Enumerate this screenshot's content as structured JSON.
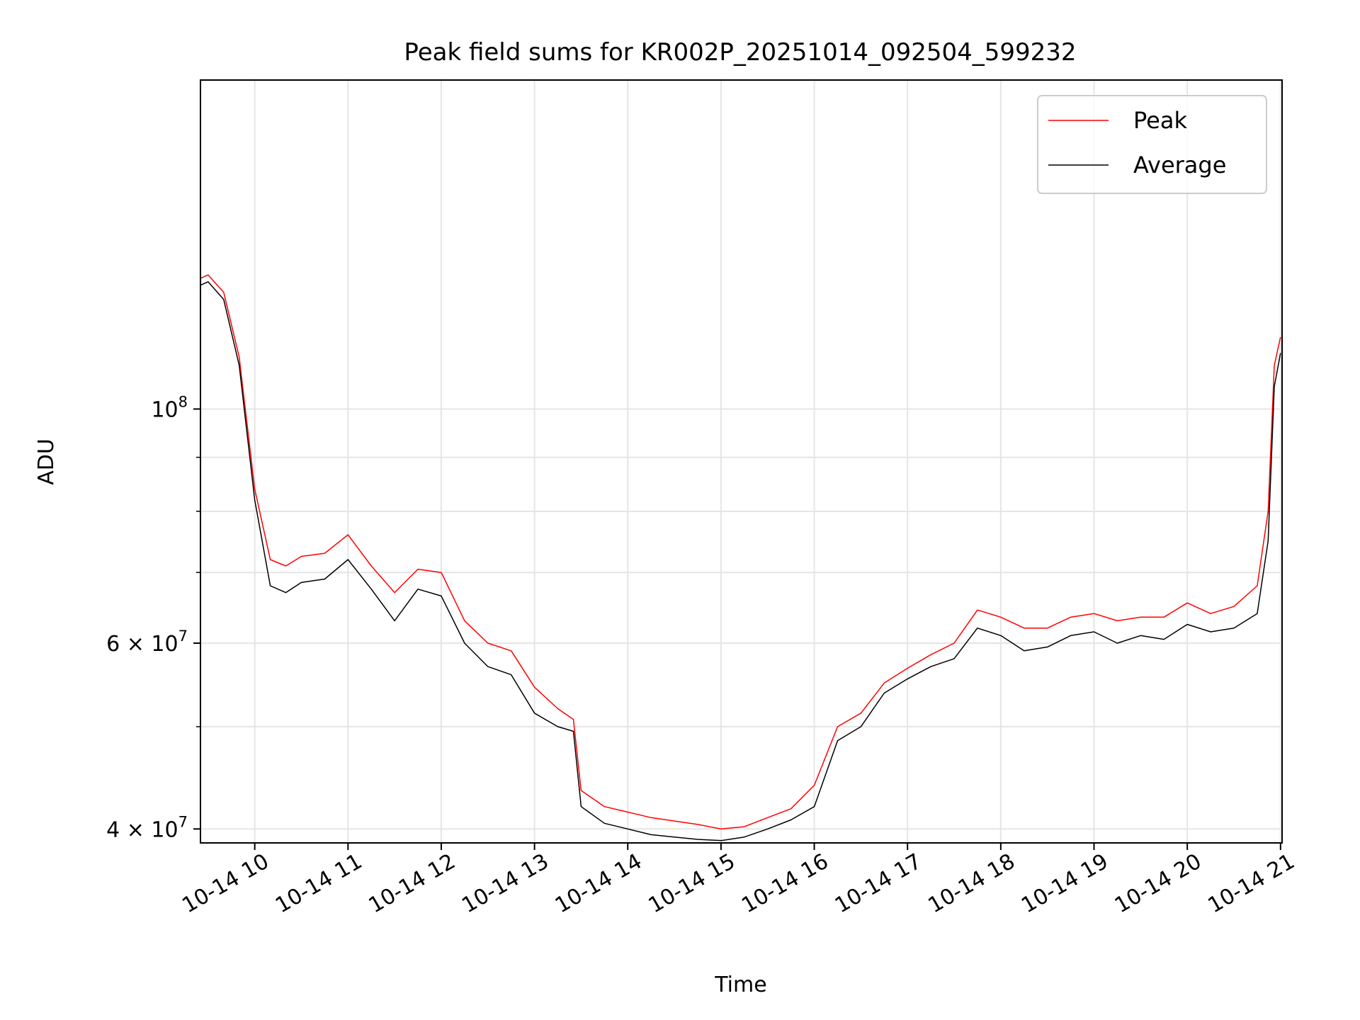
{
  "chart_data": {
    "type": "line",
    "title": "Peak field sums for KR002P_20251014_092504_599232",
    "xlabel": "Time",
    "ylabel": "ADU",
    "x_scale": "time",
    "y_scale": "log",
    "xlim": [
      "2025-10-14T09:25:04",
      "2025-10-14T21:01:00"
    ],
    "ylim": [
      38800000,
      205000000
    ],
    "x_ticks": [
      {
        "value": "2025-10-14T10:00:00",
        "label": "10-14 10"
      },
      {
        "value": "2025-10-14T11:00:00",
        "label": "10-14 11"
      },
      {
        "value": "2025-10-14T12:00:00",
        "label": "10-14 12"
      },
      {
        "value": "2025-10-14T13:00:00",
        "label": "10-14 13"
      },
      {
        "value": "2025-10-14T14:00:00",
        "label": "10-14 14"
      },
      {
        "value": "2025-10-14T15:00:00",
        "label": "10-14 15"
      },
      {
        "value": "2025-10-14T16:00:00",
        "label": "10-14 16"
      },
      {
        "value": "2025-10-14T17:00:00",
        "label": "10-14 17"
      },
      {
        "value": "2025-10-14T18:00:00",
        "label": "10-14 18"
      },
      {
        "value": "2025-10-14T19:00:00",
        "label": "10-14 19"
      },
      {
        "value": "2025-10-14T20:00:00",
        "label": "10-14 20"
      },
      {
        "value": "2025-10-14T21:00:00",
        "label": "10-14 21"
      }
    ],
    "y_major_ticks": [
      {
        "value": 100000000,
        "label_base": "10",
        "label_exp": "8"
      },
      {
        "value": 60000000,
        "label_base": "6 × 10",
        "label_exp": "7"
      },
      {
        "value": 40000000,
        "label_base": "4 × 10",
        "label_exp": "7"
      }
    ],
    "y_minor_ticks": [
      90000000,
      80000000,
      70000000,
      50000000
    ],
    "grid": true,
    "legend_position": "top-right",
    "series": [
      {
        "name": "Peak",
        "color": "#ff0000",
        "x": [
          "2025-10-14T09:25:04",
          "2025-10-14T09:30:00",
          "2025-10-14T09:40:00",
          "2025-10-14T09:50:00",
          "2025-10-14T10:00:00",
          "2025-10-14T10:10:00",
          "2025-10-14T10:20:00",
          "2025-10-14T10:30:00",
          "2025-10-14T10:45:00",
          "2025-10-14T11:00:00",
          "2025-10-14T11:15:00",
          "2025-10-14T11:30:00",
          "2025-10-14T11:45:00",
          "2025-10-14T12:00:00",
          "2025-10-14T12:15:00",
          "2025-10-14T12:30:00",
          "2025-10-14T12:45:00",
          "2025-10-14T13:00:00",
          "2025-10-14T13:15:00",
          "2025-10-14T13:25:00",
          "2025-10-14T13:30:00",
          "2025-10-14T13:45:00",
          "2025-10-14T14:00:00",
          "2025-10-14T14:15:00",
          "2025-10-14T14:30:00",
          "2025-10-14T14:45:00",
          "2025-10-14T15:00:00",
          "2025-10-14T15:15:00",
          "2025-10-14T15:30:00",
          "2025-10-14T15:45:00",
          "2025-10-14T16:00:00",
          "2025-10-14T16:15:00",
          "2025-10-14T16:30:00",
          "2025-10-14T16:45:00",
          "2025-10-14T17:00:00",
          "2025-10-14T17:15:00",
          "2025-10-14T17:30:00",
          "2025-10-14T17:45:00",
          "2025-10-14T18:00:00",
          "2025-10-14T18:15:00",
          "2025-10-14T18:30:00",
          "2025-10-14T18:45:00",
          "2025-10-14T19:00:00",
          "2025-10-14T19:15:00",
          "2025-10-14T19:30:00",
          "2025-10-14T19:45:00",
          "2025-10-14T20:00:00",
          "2025-10-14T20:15:00",
          "2025-10-14T20:30:00",
          "2025-10-14T20:45:00",
          "2025-10-14T20:52:00",
          "2025-10-14T20:56:00",
          "2025-10-14T21:00:00"
        ],
        "y": [
          133000000,
          134000000,
          129000000,
          112000000,
          84000000,
          72000000,
          71000000,
          72500000,
          73000000,
          76000000,
          71000000,
          67000000,
          70500000,
          70000000,
          63000000,
          60000000,
          59000000,
          54500000,
          52000000,
          50800000,
          43500000,
          42000000,
          41500000,
          41000000,
          40700000,
          40400000,
          40000000,
          40200000,
          41000000,
          41800000,
          44000000,
          50000000,
          51500000,
          55000000,
          56800000,
          58500000,
          60000000,
          64500000,
          63500000,
          62000000,
          62000000,
          63500000,
          64000000,
          63000000,
          63500000,
          63500000,
          65500000,
          64000000,
          65000000,
          68000000,
          80000000,
          110000000,
          117000000
        ]
      },
      {
        "name": "Average",
        "color": "#000000",
        "x": [
          "2025-10-14T09:25:04",
          "2025-10-14T09:30:00",
          "2025-10-14T09:40:00",
          "2025-10-14T09:50:00",
          "2025-10-14T10:00:00",
          "2025-10-14T10:10:00",
          "2025-10-14T10:20:00",
          "2025-10-14T10:30:00",
          "2025-10-14T10:45:00",
          "2025-10-14T11:00:00",
          "2025-10-14T11:15:00",
          "2025-10-14T11:30:00",
          "2025-10-14T11:45:00",
          "2025-10-14T12:00:00",
          "2025-10-14T12:15:00",
          "2025-10-14T12:30:00",
          "2025-10-14T12:45:00",
          "2025-10-14T13:00:00",
          "2025-10-14T13:15:00",
          "2025-10-14T13:25:00",
          "2025-10-14T13:30:00",
          "2025-10-14T13:45:00",
          "2025-10-14T14:00:00",
          "2025-10-14T14:15:00",
          "2025-10-14T14:30:00",
          "2025-10-14T14:45:00",
          "2025-10-14T15:00:00",
          "2025-10-14T15:15:00",
          "2025-10-14T15:30:00",
          "2025-10-14T15:45:00",
          "2025-10-14T16:00:00",
          "2025-10-14T16:15:00",
          "2025-10-14T16:30:00",
          "2025-10-14T16:45:00",
          "2025-10-14T17:00:00",
          "2025-10-14T17:15:00",
          "2025-10-14T17:30:00",
          "2025-10-14T17:45:00",
          "2025-10-14T18:00:00",
          "2025-10-14T18:15:00",
          "2025-10-14T18:30:00",
          "2025-10-14T18:45:00",
          "2025-10-14T19:00:00",
          "2025-10-14T19:15:00",
          "2025-10-14T19:30:00",
          "2025-10-14T19:45:00",
          "2025-10-14T20:00:00",
          "2025-10-14T20:15:00",
          "2025-10-14T20:30:00",
          "2025-10-14T20:45:00",
          "2025-10-14T20:52:00",
          "2025-10-14T20:56:00",
          "2025-10-14T21:00:00"
        ],
        "y": [
          131000000,
          132000000,
          127000000,
          110000000,
          82000000,
          68000000,
          67000000,
          68500000,
          69000000,
          72000000,
          67500000,
          63000000,
          67500000,
          66500000,
          60000000,
          57000000,
          56000000,
          51500000,
          50000000,
          49500000,
          42000000,
          40500000,
          40000000,
          39500000,
          39300000,
          39100000,
          39000000,
          39300000,
          40000000,
          40800000,
          42000000,
          48500000,
          50000000,
          53800000,
          55500000,
          57000000,
          58000000,
          62000000,
          61000000,
          59000000,
          59500000,
          61000000,
          61500000,
          60000000,
          61000000,
          60500000,
          62500000,
          61500000,
          62000000,
          64000000,
          75000000,
          105000000,
          113000000
        ]
      }
    ]
  }
}
